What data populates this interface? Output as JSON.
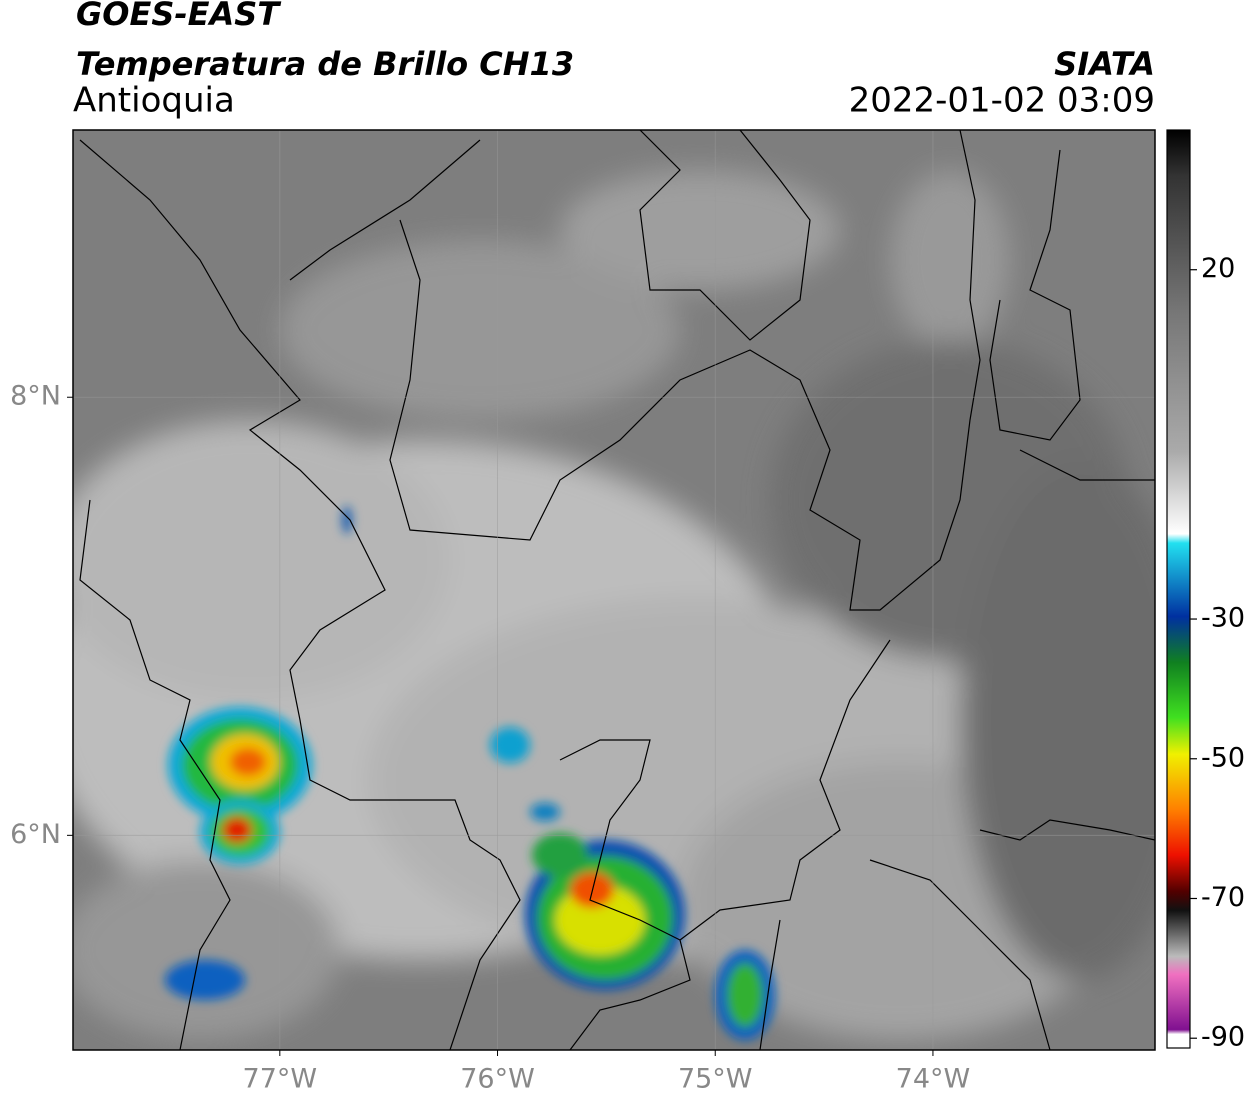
{
  "header": {
    "line1": "GOES-EAST",
    "line2": "Temperatura de Brillo CH13",
    "region": "Antioquia",
    "source": "SIATA",
    "datetime": "2022-01-02 03:09"
  },
  "map": {
    "lonlim": [
      -77.95,
      -72.98
    ],
    "latlim": [
      5.02,
      9.22
    ],
    "lonticks": [
      {
        "value": -77,
        "label": "77°W"
      },
      {
        "value": -76,
        "label": "76°W"
      },
      {
        "value": -75,
        "label": "75°W"
      },
      {
        "value": -74,
        "label": "74°W"
      }
    ],
    "latticks": [
      {
        "value": 8,
        "label": "8°N"
      },
      {
        "value": 6,
        "label": "6°N"
      }
    ],
    "grid": true
  },
  "colorbar": {
    "lim": [
      -91.4,
      40
    ],
    "ticks": [
      20,
      -30,
      -50,
      -70,
      -90
    ]
  }
}
